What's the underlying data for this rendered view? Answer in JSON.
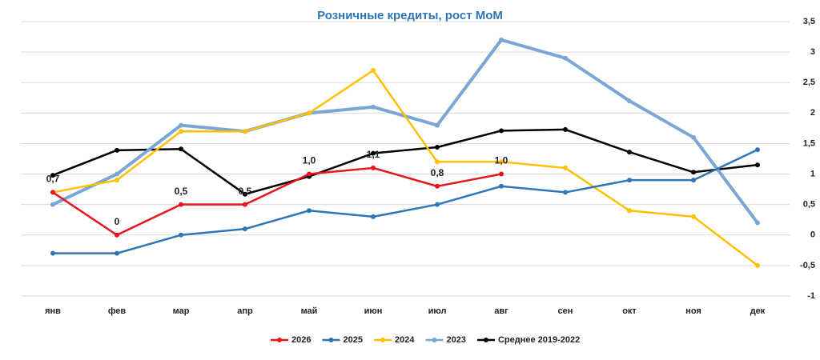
{
  "chart_data": {
    "type": "line",
    "title": "Розничные кредиты, рост MoM",
    "categories": [
      "янв",
      "фев",
      "мар",
      "апр",
      "май",
      "июн",
      "июл",
      "авг",
      "сен",
      "окт",
      "ноя",
      "дек"
    ],
    "series": [
      {
        "name": "2026",
        "color": "#e8141c",
        "values": [
          0.7,
          0,
          0.5,
          0.5,
          1.0,
          1.1,
          0.8,
          1.0,
          null,
          null,
          null,
          null
        ],
        "value_labels": [
          "0,7",
          "0",
          "0,5",
          "0,5",
          "1,0",
          "1,1",
          "0,8",
          "1,0",
          null,
          null,
          null,
          null
        ]
      },
      {
        "name": "2025",
        "color": "#2e75b6",
        "values": [
          -0.3,
          -0.3,
          0,
          0.1,
          0.4,
          0.3,
          0.5,
          0.8,
          0.7,
          0.9,
          0.9,
          1.4
        ]
      },
      {
        "name": "2024",
        "color": "#ffc000",
        "values": [
          0.7,
          0.9,
          1.7,
          1.7,
          2.0,
          2.7,
          1.2,
          1.2,
          1.1,
          0.4,
          0.3,
          -0.5
        ]
      },
      {
        "name": "2023",
        "color": "#7aa6d6",
        "values": [
          0.5,
          1.0,
          1.8,
          1.7,
          2.0,
          2.1,
          1.8,
          3.2,
          2.9,
          2.2,
          1.6,
          0.2
        ]
      },
      {
        "name": "Среднее 2019-2022",
        "color": "#000000",
        "values": [
          0.98,
          1.39,
          1.41,
          0.67,
          0.96,
          1.34,
          1.44,
          1.71,
          1.73,
          1.36,
          1.03,
          1.15
        ]
      }
    ],
    "ylim": [
      -1,
      3.5
    ],
    "yticks": [
      -1,
      {
        "value": -0.5,
        "label": "-0,5"
      },
      0,
      {
        "value": 0.5,
        "label": "0,5"
      },
      1,
      {
        "value": 1.5,
        "label": "1,5"
      },
      2,
      {
        "value": 2.5,
        "label": "2,5"
      },
      3,
      {
        "value": 3.5,
        "label": "3,5"
      }
    ],
    "grid": true
  }
}
